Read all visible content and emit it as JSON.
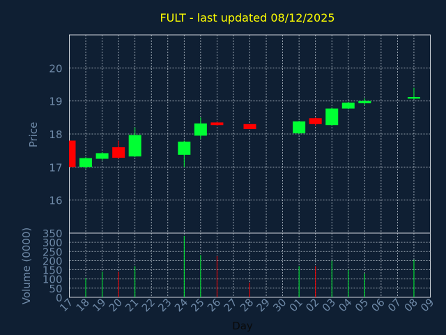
{
  "chart_data": [
    {
      "type": "candlestick",
      "title": "FULT - last updated 08/12/2025",
      "ylabel": "Price",
      "ylim": [
        15,
        21
      ],
      "yticks": [
        16,
        17,
        18,
        19,
        20
      ],
      "x_tick_labels": [
        "17",
        "18",
        "19",
        "20",
        "21",
        "22",
        "23",
        "24",
        "25",
        "26",
        "27",
        "28",
        "29",
        "30",
        "01",
        "02",
        "03",
        "04",
        "05",
        "06",
        "07",
        "08",
        "09"
      ],
      "grid": true,
      "colors": {
        "up": "#00ff33",
        "down": "#ff0000",
        "background": "#0f1f33",
        "title": "#ffff00",
        "axis_text": "#6f8aa8"
      },
      "candles": [
        {
          "x": 0,
          "open": 17.8,
          "high": 17.8,
          "low": 17.0,
          "close": 17.0
        },
        {
          "x": 1,
          "open": 17.0,
          "high": 17.3,
          "low": 16.95,
          "close": 17.27
        },
        {
          "x": 2,
          "open": 17.25,
          "high": 17.45,
          "low": 17.2,
          "close": 17.42
        },
        {
          "x": 3,
          "open": 17.6,
          "high": 17.8,
          "low": 17.25,
          "close": 17.28
        },
        {
          "x": 4,
          "open": 17.32,
          "high": 18.2,
          "low": 17.3,
          "close": 17.97
        },
        {
          "x": 7,
          "open": 17.37,
          "high": 17.8,
          "low": 17.0,
          "close": 17.77
        },
        {
          "x": 8,
          "open": 17.95,
          "high": 18.5,
          "low": 17.85,
          "close": 18.32
        },
        {
          "x": 9,
          "open": 18.35,
          "high": 18.37,
          "low": 18.25,
          "close": 18.27
        },
        {
          "x": 11,
          "open": 18.3,
          "high": 18.3,
          "low": 18.15,
          "close": 18.15
        },
        {
          "x": 14,
          "open": 18.02,
          "high": 18.4,
          "low": 18.0,
          "close": 18.38
        },
        {
          "x": 15,
          "open": 18.48,
          "high": 18.5,
          "low": 18.25,
          "close": 18.3
        },
        {
          "x": 16,
          "open": 18.27,
          "high": 18.8,
          "low": 18.25,
          "close": 18.77
        },
        {
          "x": 17,
          "open": 18.77,
          "high": 18.97,
          "low": 18.75,
          "close": 18.95
        },
        {
          "x": 18,
          "open": 18.93,
          "high": 19.08,
          "low": 18.88,
          "close": 19.0
        },
        {
          "x": 21,
          "open": 19.07,
          "high": 19.4,
          "low": 19.05,
          "close": 19.12
        }
      ]
    },
    {
      "type": "bar",
      "ylabel": "Volume (0000)",
      "ylim": [
        0,
        350
      ],
      "yticks": [
        0,
        50,
        100,
        150,
        200,
        250,
        300,
        350
      ],
      "xlabel": "Day",
      "x_tick_labels": [
        "17",
        "18",
        "19",
        "20",
        "21",
        "22",
        "23",
        "24",
        "25",
        "26",
        "27",
        "28",
        "29",
        "30",
        "01",
        "02",
        "03",
        "04",
        "05",
        "06",
        "07",
        "08",
        "09"
      ],
      "grid": true,
      "bars": [
        {
          "x": 1,
          "value": 105,
          "direction": "up"
        },
        {
          "x": 2,
          "value": 140,
          "direction": "up"
        },
        {
          "x": 3,
          "value": 140,
          "direction": "down"
        },
        {
          "x": 4,
          "value": 170,
          "direction": "up"
        },
        {
          "x": 7,
          "value": 335,
          "direction": "up"
        },
        {
          "x": 8,
          "value": 230,
          "direction": "up"
        },
        {
          "x": 9,
          "value": 225,
          "direction": "down"
        },
        {
          "x": 11,
          "value": 80,
          "direction": "down"
        },
        {
          "x": 14,
          "value": 170,
          "direction": "up"
        },
        {
          "x": 15,
          "value": 170,
          "direction": "down"
        },
        {
          "x": 16,
          "value": 200,
          "direction": "up"
        },
        {
          "x": 17,
          "value": 150,
          "direction": "up"
        },
        {
          "x": 18,
          "value": 130,
          "direction": "up"
        },
        {
          "x": 21,
          "value": 205,
          "direction": "up"
        }
      ]
    }
  ]
}
